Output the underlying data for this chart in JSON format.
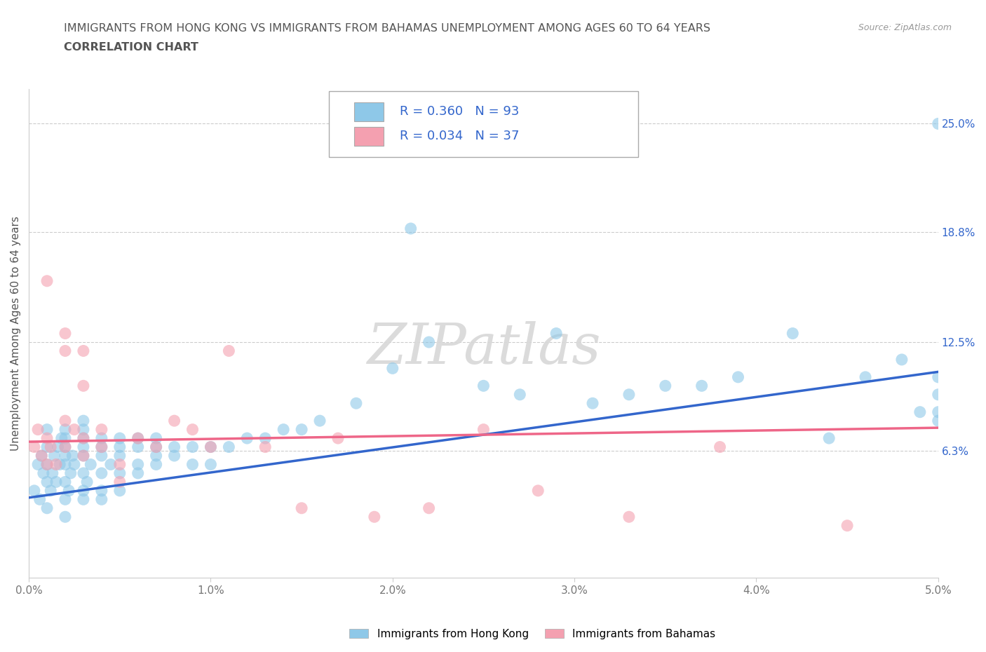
{
  "title_line1": "IMMIGRANTS FROM HONG KONG VS IMMIGRANTS FROM BAHAMAS UNEMPLOYMENT AMONG AGES 60 TO 64 YEARS",
  "title_line2": "CORRELATION CHART",
  "source_text": "Source: ZipAtlas.com",
  "ylabel": "Unemployment Among Ages 60 to 64 years",
  "legend_label1": "Immigrants from Hong Kong",
  "legend_label2": "Immigrants from Bahamas",
  "legend_R1": "R = 0.360",
  "legend_N1": "N = 93",
  "legend_R2": "R = 0.034",
  "legend_N2": "N = 37",
  "xlim": [
    0.0,
    0.05
  ],
  "ylim": [
    -0.01,
    0.27
  ],
  "xtick_labels": [
    "0.0%",
    "1.0%",
    "2.0%",
    "3.0%",
    "4.0%",
    "5.0%"
  ],
  "xtick_values": [
    0.0,
    0.01,
    0.02,
    0.03,
    0.04,
    0.05
  ],
  "ytick_right_labels": [
    "6.3%",
    "12.5%",
    "18.8%",
    "25.0%"
  ],
  "ytick_right_values": [
    0.063,
    0.125,
    0.188,
    0.25
  ],
  "color_hk": "#8EC8E8",
  "color_hk_line": "#3366CC",
  "color_bah": "#F4A0B0",
  "color_bah_line": "#EE6688",
  "watermark": "ZIPatlas",
  "background_color": "#FFFFFF",
  "title_color": "#555555",
  "axis_label_color": "#555555",
  "grid_color": "#CCCCCC",
  "hk_x": [
    0.0003,
    0.0005,
    0.0006,
    0.0007,
    0.0008,
    0.001,
    0.001,
    0.001,
    0.001,
    0.001,
    0.0012,
    0.0013,
    0.0014,
    0.0015,
    0.0016,
    0.0017,
    0.0018,
    0.002,
    0.002,
    0.002,
    0.002,
    0.002,
    0.002,
    0.002,
    0.002,
    0.0022,
    0.0023,
    0.0024,
    0.0025,
    0.003,
    0.003,
    0.003,
    0.003,
    0.003,
    0.003,
    0.003,
    0.003,
    0.0032,
    0.0034,
    0.004,
    0.004,
    0.004,
    0.004,
    0.004,
    0.004,
    0.0045,
    0.005,
    0.005,
    0.005,
    0.005,
    0.005,
    0.006,
    0.006,
    0.006,
    0.006,
    0.007,
    0.007,
    0.007,
    0.007,
    0.008,
    0.008,
    0.009,
    0.009,
    0.01,
    0.01,
    0.011,
    0.012,
    0.013,
    0.014,
    0.015,
    0.016,
    0.018,
    0.02,
    0.021,
    0.022,
    0.025,
    0.027,
    0.029,
    0.031,
    0.033,
    0.035,
    0.037,
    0.039,
    0.042,
    0.044,
    0.046,
    0.048,
    0.049,
    0.05,
    0.05,
    0.05,
    0.05,
    0.05
  ],
  "hk_y": [
    0.04,
    0.055,
    0.035,
    0.06,
    0.05,
    0.03,
    0.045,
    0.055,
    0.065,
    0.075,
    0.04,
    0.05,
    0.06,
    0.045,
    0.065,
    0.055,
    0.07,
    0.025,
    0.035,
    0.045,
    0.055,
    0.06,
    0.065,
    0.07,
    0.075,
    0.04,
    0.05,
    0.06,
    0.055,
    0.035,
    0.04,
    0.05,
    0.06,
    0.065,
    0.07,
    0.075,
    0.08,
    0.045,
    0.055,
    0.035,
    0.04,
    0.05,
    0.06,
    0.065,
    0.07,
    0.055,
    0.04,
    0.05,
    0.06,
    0.065,
    0.07,
    0.05,
    0.055,
    0.065,
    0.07,
    0.055,
    0.06,
    0.065,
    0.07,
    0.06,
    0.065,
    0.055,
    0.065,
    0.055,
    0.065,
    0.065,
    0.07,
    0.07,
    0.075,
    0.075,
    0.08,
    0.09,
    0.11,
    0.19,
    0.125,
    0.1,
    0.095,
    0.13,
    0.09,
    0.095,
    0.1,
    0.1,
    0.105,
    0.13,
    0.07,
    0.105,
    0.115,
    0.085,
    0.105,
    0.095,
    0.085,
    0.08,
    0.25
  ],
  "bah_x": [
    0.0003,
    0.0005,
    0.0007,
    0.001,
    0.001,
    0.001,
    0.0012,
    0.0015,
    0.002,
    0.002,
    0.002,
    0.002,
    0.0025,
    0.003,
    0.003,
    0.003,
    0.003,
    0.004,
    0.004,
    0.005,
    0.005,
    0.006,
    0.007,
    0.008,
    0.009,
    0.01,
    0.011,
    0.013,
    0.015,
    0.017,
    0.019,
    0.022,
    0.025,
    0.028,
    0.033,
    0.038,
    0.045
  ],
  "bah_y": [
    0.065,
    0.075,
    0.06,
    0.055,
    0.07,
    0.16,
    0.065,
    0.055,
    0.065,
    0.08,
    0.12,
    0.13,
    0.075,
    0.06,
    0.07,
    0.1,
    0.12,
    0.065,
    0.075,
    0.045,
    0.055,
    0.07,
    0.065,
    0.08,
    0.075,
    0.065,
    0.12,
    0.065,
    0.03,
    0.07,
    0.025,
    0.03,
    0.075,
    0.04,
    0.025,
    0.065,
    0.02
  ],
  "hk_trend_x": [
    0.0,
    0.05
  ],
  "hk_trend_y": [
    0.036,
    0.108
  ],
  "bah_trend_x": [
    0.0,
    0.05
  ],
  "bah_trend_y": [
    0.068,
    0.076
  ]
}
